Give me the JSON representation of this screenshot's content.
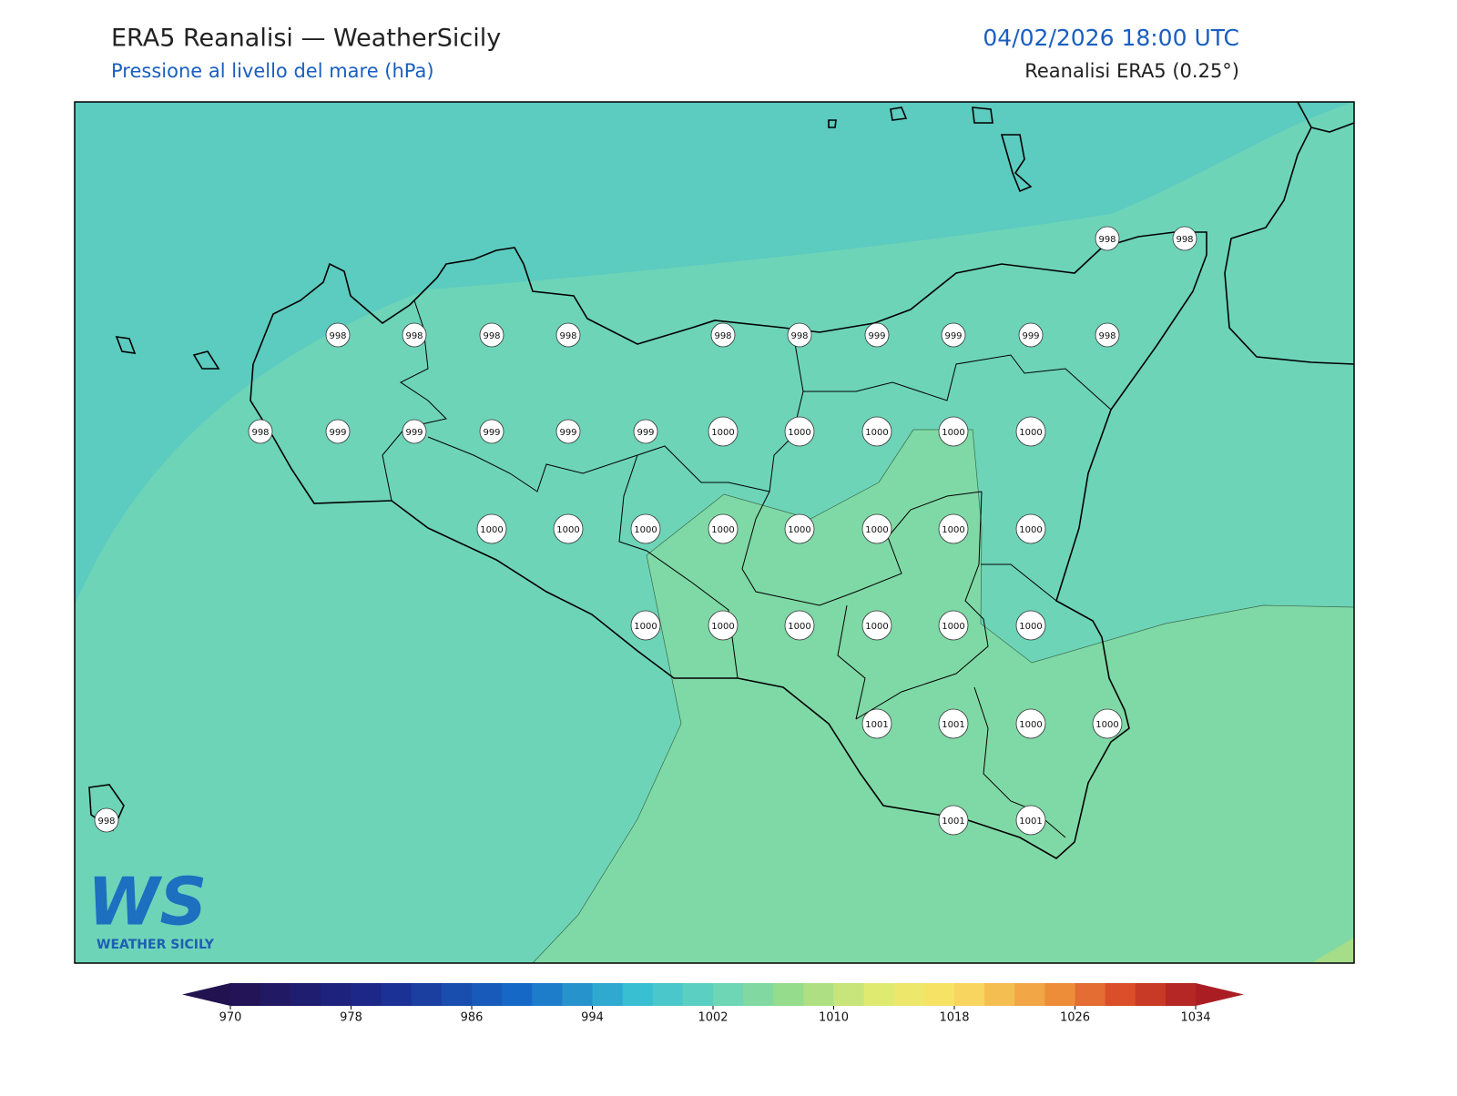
{
  "header": {
    "title": "ERA5 Reanalisi — WeatherSicily",
    "subtitle": "Pressione al livello del mare (hPa)",
    "datetime": "04/02/2026 18:00 UTC",
    "source": "Reanalisi ERA5 (0.25°)"
  },
  "stations": [
    998,
    998,
    998,
    998,
    998,
    998,
    998,
    998,
    999,
    999,
    999,
    998,
    998,
    999,
    999,
    999,
    999,
    999,
    1000,
    1000,
    1000,
    1000,
    1000,
    1000,
    1000,
    1000,
    1000,
    1000,
    1000,
    1000,
    1000,
    1000,
    1000,
    1000,
    1000,
    1000,
    1000,
    1001,
    1001,
    1000,
    1000,
    998,
    1001,
    1001
  ],
  "colorbar": {
    "range": [
      970,
      1034
    ],
    "step": 2,
    "ticks": [
      970,
      978,
      986,
      994,
      1002,
      1010,
      1018,
      1026,
      1034
    ]
  },
  "logo": {
    "mark": "WS",
    "text": "WEATHER SICILY"
  }
}
